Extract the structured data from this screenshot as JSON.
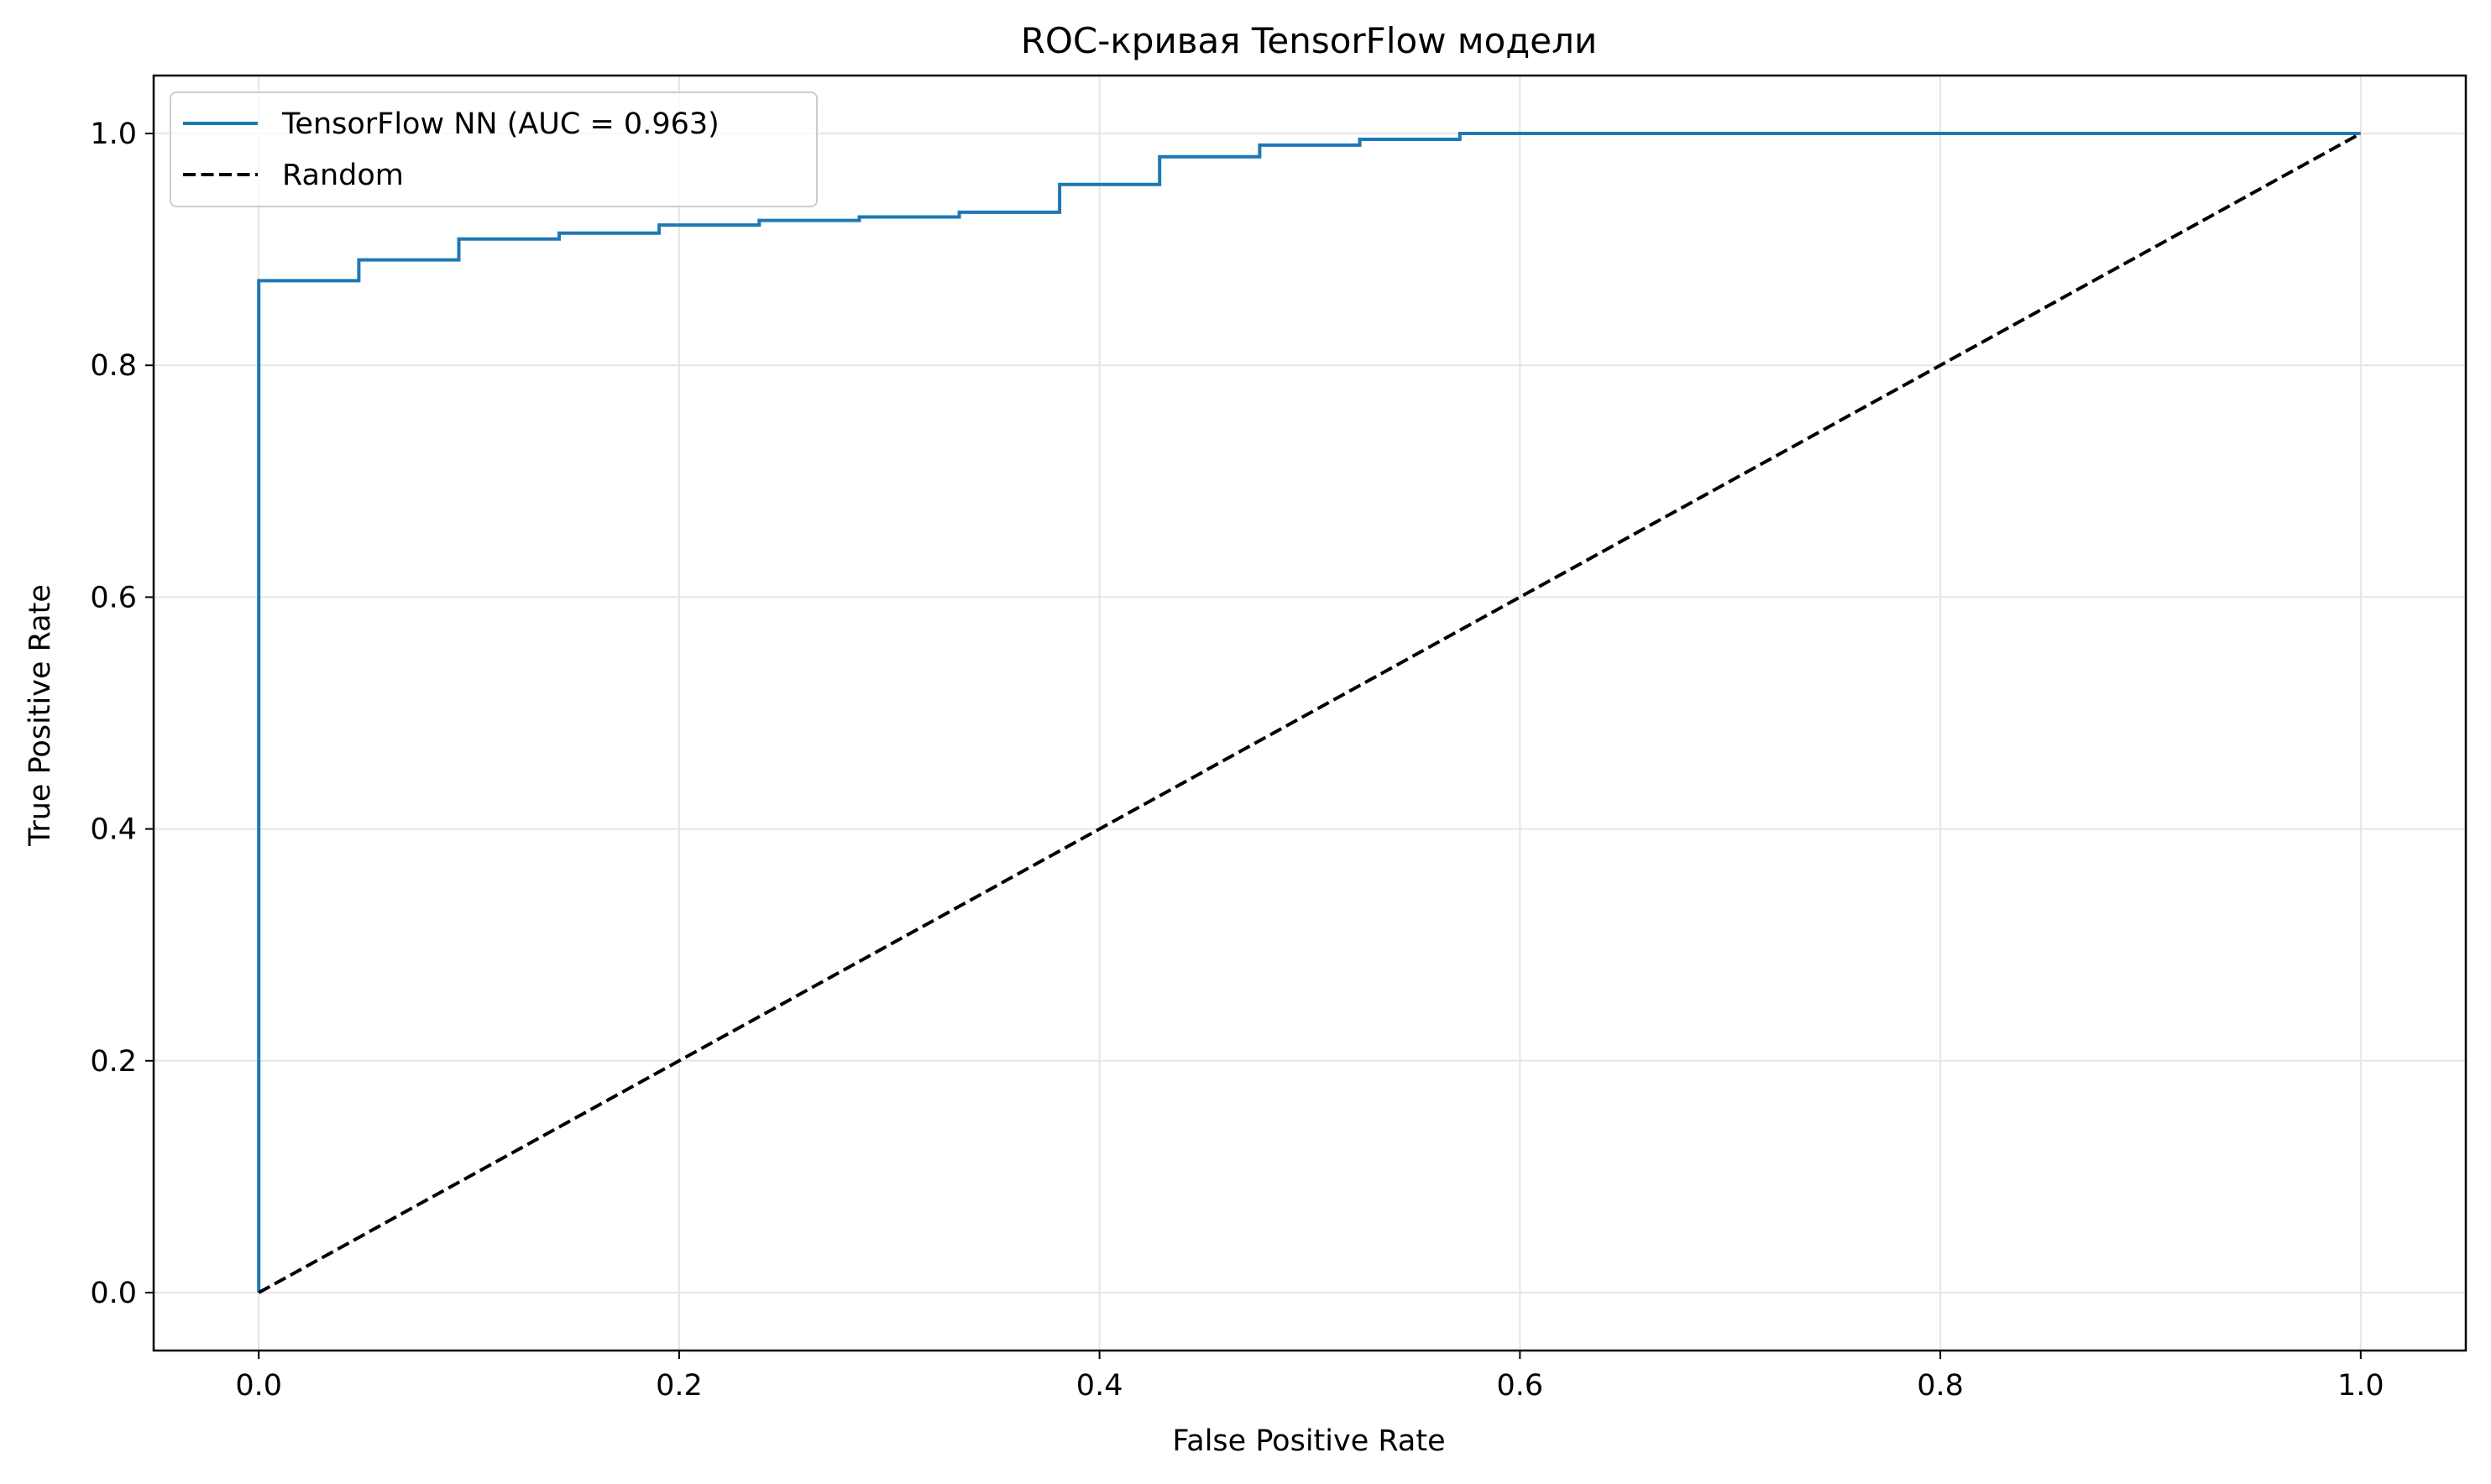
{
  "chart_data": {
    "type": "line",
    "title": "ROC-кривая TensorFlow модели",
    "xlabel": "False Positive Rate",
    "ylabel": "True Positive Rate",
    "xlim": [
      -0.05,
      1.05
    ],
    "ylim": [
      -0.05,
      1.05
    ],
    "xticks": [
      0.0,
      0.2,
      0.4,
      0.6,
      0.8,
      1.0
    ],
    "yticks": [
      0.0,
      0.2,
      0.4,
      0.6,
      0.8,
      1.0
    ],
    "xtick_labels": [
      "0.0",
      "0.2",
      "0.4",
      "0.6",
      "0.8",
      "1.0"
    ],
    "ytick_labels": [
      "0.0",
      "0.2",
      "0.4",
      "0.6",
      "0.8",
      "1.0"
    ],
    "grid": true,
    "legend_position": "top-left",
    "series": [
      {
        "name": "TensorFlow NN (AUC = 0.963)",
        "color": "#1f77b4",
        "style": "solid",
        "x": [
          0.0,
          0.0,
          0.0,
          0.0476,
          0.0476,
          0.0952,
          0.0952,
          0.1429,
          0.1429,
          0.1905,
          0.1905,
          0.2381,
          0.2381,
          0.2857,
          0.2857,
          0.3333,
          0.3333,
          0.381,
          0.381,
          0.4286,
          0.4286,
          0.4762,
          0.4762,
          0.5238,
          0.5238,
          0.5714,
          0.5714,
          1.0
        ],
        "y": [
          0.0,
          0.0,
          0.873,
          0.873,
          0.891,
          0.891,
          0.909,
          0.909,
          0.914,
          0.914,
          0.921,
          0.921,
          0.925,
          0.925,
          0.928,
          0.928,
          0.932,
          0.932,
          0.956,
          0.956,
          0.98,
          0.98,
          0.99,
          0.99,
          0.995,
          0.995,
          1.0,
          1.0
        ]
      },
      {
        "name": "Random",
        "color": "#000000",
        "style": "dashed",
        "x": [
          0.0,
          1.0
        ],
        "y": [
          0.0,
          1.0
        ]
      }
    ]
  }
}
